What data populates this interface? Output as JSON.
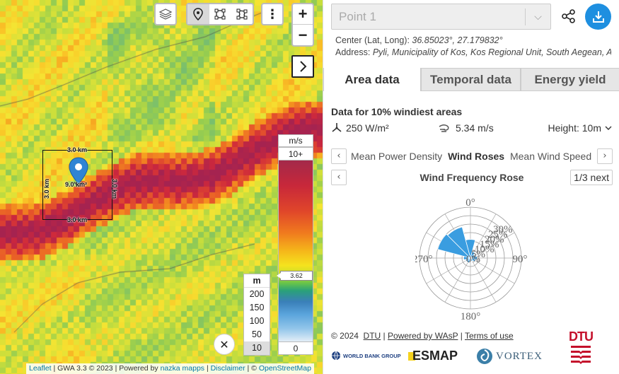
{
  "map": {
    "layers_icon": "layers-icon",
    "tools": [
      "pin-tool-icon",
      "square-area-icon",
      "polygon-area-icon"
    ],
    "menu_icon": "more-vertical-icon",
    "zoom_in": "+",
    "zoom_out": "−",
    "expand_icon": "chevron-right-icon",
    "selection": {
      "top": "3.0 km",
      "bottom": "3.0 km",
      "left": "3.0 km",
      "right": "3.0 km",
      "area": "9.0 km²"
    },
    "legend": {
      "unit": "m/s",
      "max": "10+",
      "min": "0",
      "marker": "3.62"
    },
    "height_selector": {
      "header": "m",
      "options": [
        "200",
        "150",
        "100",
        "50",
        "10"
      ],
      "selected": "10"
    },
    "close_icon": "close-icon",
    "attribution": {
      "leaflet": "Leaflet",
      "text1": " | GWA 3.3 © 2023 | Powered by ",
      "nazka": "nazka mapps",
      "sep": " | ",
      "disclaimer": "Disclaimer",
      "sep2": " | © ",
      "osm": "OpenStreetMap"
    }
  },
  "panel": {
    "point_name": "Point 1",
    "center_label": "Center (Lat, Long): ",
    "center_value": "36.85023°, 27.179832°",
    "address_label": "Address: ",
    "address_value": "Pyli, Municipality of Kos, Kos Regional Unit, South Aegean, A...",
    "tabs": [
      {
        "label": "Area data",
        "active": true
      },
      {
        "label": "Temporal data",
        "active": false
      },
      {
        "label": "Energy yield",
        "active": false
      }
    ],
    "data_heading": "Data for 10% windiest areas",
    "power_density": "250 W/m²",
    "wind_speed": "5.34 m/s",
    "height_label": "Height: 10m",
    "sub_tabs": [
      {
        "label": "Mean Power Density",
        "active": false
      },
      {
        "label": "Wind Roses",
        "active": true
      },
      {
        "label": "Mean Wind Speed",
        "active": false
      }
    ],
    "rose_title": "Wind Frequency Rose",
    "rose_page": "1/3",
    "rose_next": "next",
    "rose": {
      "directions": [
        "0°",
        "90°",
        "180°",
        "270°"
      ],
      "rings": [
        "30%",
        "25%",
        "20%",
        "15%",
        "10%",
        "5%",
        "0%"
      ],
      "fill_color": "#3a9de0"
    },
    "footer": {
      "copyright": "© 2024",
      "dtu": "DTU",
      "powered": "Powered by WAsP",
      "terms": "Terms of use",
      "sep": " | "
    },
    "logos": {
      "worldbank": "WORLD BANK GROUP",
      "esmap": "ESMAP",
      "vortex": "VORTEX",
      "dtu": "DTU"
    }
  }
}
